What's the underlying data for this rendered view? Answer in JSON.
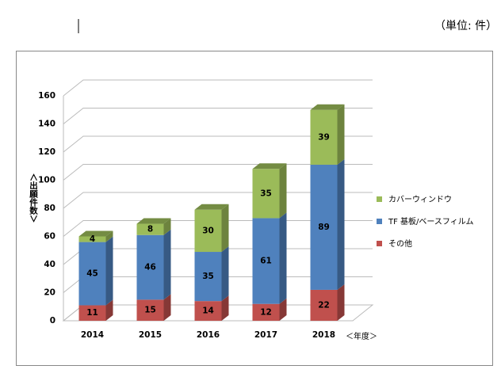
{
  "header": {
    "unit": "（単位: 件）"
  },
  "chart_data": {
    "type": "bar3d_stacked",
    "ylabel": "＜出願件数＞",
    "xlabel": "＜年度＞",
    "categories": [
      "2014",
      "2015",
      "2016",
      "2017",
      "2018"
    ],
    "series": [
      {
        "name": "その他",
        "color": "#c0504d",
        "values": [
          11,
          15,
          14,
          12,
          22
        ]
      },
      {
        "name": "TF 基板/ベースフィルム",
        "color": "#4f81bd",
        "values": [
          45,
          46,
          35,
          61,
          89
        ]
      },
      {
        "name": "カバーウィンドウ",
        "color": "#9bbb59",
        "values": [
          4,
          8,
          30,
          35,
          39
        ]
      }
    ],
    "ylim": [
      0,
      160
    ],
    "yticks": [
      0,
      20,
      40,
      60,
      80,
      100,
      120,
      140,
      160
    ],
    "grid": true,
    "legend": "right"
  }
}
